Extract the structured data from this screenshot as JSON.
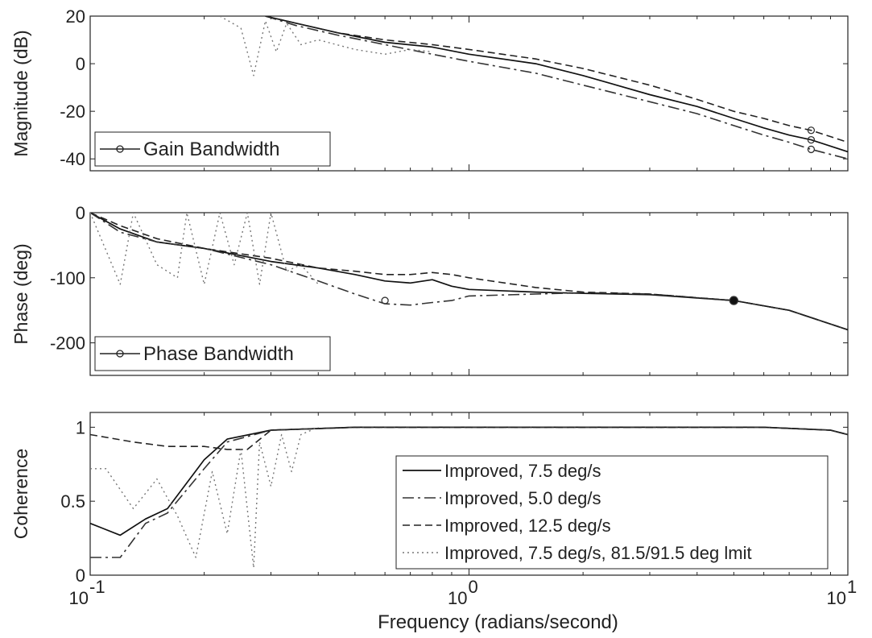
{
  "chart_data": [
    {
      "type": "line",
      "panel": "magnitude",
      "ylabel": "Magnitude (dB)",
      "xscale": "log",
      "xlim": [
        0.1,
        10
      ],
      "ylim": [
        -45,
        20
      ],
      "yticks": [
        -40,
        -20,
        0,
        20
      ],
      "grid": false,
      "legend": {
        "placement": "bottom-left",
        "entries": [
          {
            "label": "Gain Bandwidth",
            "marker": "circle"
          }
        ]
      },
      "series": [
        {
          "name": "Improved, 7.5 deg/s",
          "style": "solid",
          "x": [
            0.29,
            0.35,
            0.45,
            0.6,
            0.8,
            1.0,
            1.5,
            2,
            3,
            4,
            5,
            6,
            7,
            8,
            10
          ],
          "y": [
            20,
            17,
            13,
            9,
            7,
            4,
            0,
            -5,
            -13,
            -18,
            -23,
            -27,
            -30,
            -32,
            -37
          ]
        },
        {
          "name": "Improved, 5.0 deg/s",
          "style": "dashdot",
          "x": [
            0.29,
            0.35,
            0.45,
            0.6,
            0.8,
            1.0,
            1.5,
            2,
            3,
            4,
            5,
            6,
            7,
            8,
            10
          ],
          "y": [
            20,
            16,
            12,
            8,
            4,
            1,
            -4,
            -9,
            -16,
            -21,
            -26,
            -30,
            -33,
            -36,
            -40
          ]
        },
        {
          "name": "Improved, 12.5 deg/s",
          "style": "dashed",
          "x": [
            0.29,
            0.35,
            0.45,
            0.6,
            0.8,
            1.0,
            1.5,
            2,
            3,
            4,
            5,
            6,
            7,
            8,
            10
          ],
          "y": [
            20,
            17,
            13,
            10,
            8,
            6,
            2,
            -2,
            -9,
            -15,
            -20,
            -23,
            -26,
            -28,
            -33
          ]
        },
        {
          "name": "Improved, 7.5 deg/s, 81.5/91.5 deg limit",
          "style": "dotted",
          "x": [
            0.22,
            0.25,
            0.27,
            0.29,
            0.31,
            0.33,
            0.36,
            0.4,
            0.5,
            0.6,
            0.7,
            0.8
          ],
          "y": [
            20,
            15,
            -5,
            18,
            5,
            17,
            8,
            10,
            6,
            4,
            6,
            5
          ]
        }
      ],
      "markers": [
        {
          "x": 8,
          "y": -32
        },
        {
          "x": 8,
          "y": -36
        },
        {
          "x": 8,
          "y": -28
        }
      ]
    },
    {
      "type": "line",
      "panel": "phase",
      "ylabel": "Phase (deg)",
      "xscale": "log",
      "xlim": [
        0.1,
        10
      ],
      "ylim": [
        -250,
        0
      ],
      "yticks": [
        -200,
        -100,
        0
      ],
      "grid": false,
      "legend": {
        "placement": "bottom-left",
        "entries": [
          {
            "label": "Phase Bandwidth",
            "marker": "circle"
          }
        ]
      },
      "series": [
        {
          "name": "Improved, 7.5 deg/s",
          "style": "solid",
          "x": [
            0.1,
            0.12,
            0.15,
            0.2,
            0.3,
            0.4,
            0.5,
            0.6,
            0.7,
            0.8,
            0.9,
            1.0,
            1.5,
            2,
            3,
            5,
            7,
            10
          ],
          "y": [
            0,
            -25,
            -45,
            -55,
            -75,
            -85,
            -95,
            -105,
            -108,
            -103,
            -113,
            -118,
            -122,
            -124,
            -126,
            -135,
            -150,
            -180
          ]
        },
        {
          "name": "Improved, 5.0 deg/s",
          "style": "dashdot",
          "x": [
            0.1,
            0.12,
            0.15,
            0.2,
            0.3,
            0.4,
            0.5,
            0.6,
            0.7,
            0.8,
            0.9,
            1.0,
            1.5,
            2,
            3,
            5,
            7,
            10
          ],
          "y": [
            0,
            -30,
            -45,
            -55,
            -80,
            -105,
            -125,
            -140,
            -142,
            -138,
            -135,
            -128,
            -125,
            -123,
            -125,
            -135,
            -150,
            -180
          ]
        },
        {
          "name": "Improved, 12.5 deg/s",
          "style": "dashed",
          "x": [
            0.1,
            0.12,
            0.15,
            0.2,
            0.3,
            0.4,
            0.5,
            0.6,
            0.7,
            0.8,
            0.9,
            1.0,
            1.5,
            2,
            3,
            5,
            7,
            10
          ],
          "y": [
            0,
            -20,
            -40,
            -55,
            -70,
            -85,
            -90,
            -95,
            -95,
            -92,
            -95,
            -100,
            -115,
            -122,
            -125,
            -135,
            -150,
            -180
          ]
        },
        {
          "name": "Improved, 7.5 deg/s, 81.5/91.5 deg limit",
          "style": "dotted",
          "x": [
            0.1,
            0.12,
            0.13,
            0.15,
            0.17,
            0.18,
            0.2,
            0.22,
            0.24,
            0.26,
            0.28,
            0.3,
            0.33,
            0.36,
            0.4
          ],
          "y": [
            0,
            -110,
            0,
            -80,
            -100,
            0,
            -110,
            0,
            -80,
            0,
            -110,
            0,
            -90,
            -80,
            -110
          ]
        }
      ],
      "markers": [
        {
          "x": 0.6,
          "y": -135,
          "filled": false
        },
        {
          "x": 5,
          "y": -135,
          "filled": true
        }
      ]
    },
    {
      "type": "line",
      "panel": "coherence",
      "ylabel": "Coherence",
      "xlabel": "Frequency (radians/second)",
      "xscale": "log",
      "xlim": [
        0.1,
        10
      ],
      "ylim": [
        0,
        1.1
      ],
      "yticks": [
        0,
        0.5,
        1
      ],
      "xticks": [
        0.1,
        1,
        10
      ],
      "grid": false,
      "legend": {
        "placement": "bottom-right",
        "entries": [
          {
            "label": "Improved, 7.5 deg/s",
            "style": "solid"
          },
          {
            "label": "Improved, 5.0 deg/s",
            "style": "dashdot"
          },
          {
            "label": "Improved, 12.5 deg/s",
            "style": "dashed"
          },
          {
            "label": "Improved, 7.5 deg/s, 81.5/91.5 deg lmit",
            "style": "dotted"
          }
        ]
      },
      "series": [
        {
          "name": "Improved, 7.5 deg/s",
          "style": "solid",
          "x": [
            0.1,
            0.12,
            0.14,
            0.16,
            0.2,
            0.23,
            0.3,
            0.5,
            1,
            3,
            6,
            9,
            10
          ],
          "y": [
            0.35,
            0.27,
            0.38,
            0.45,
            0.78,
            0.92,
            0.98,
            1.0,
            1.0,
            1.0,
            1.0,
            0.98,
            0.95
          ]
        },
        {
          "name": "Improved, 5.0 deg/s",
          "style": "dashdot",
          "x": [
            0.1,
            0.12,
            0.14,
            0.16,
            0.2,
            0.23,
            0.3,
            0.5,
            1,
            3,
            6,
            9,
            10
          ],
          "y": [
            0.12,
            0.12,
            0.35,
            0.42,
            0.72,
            0.9,
            0.98,
            1.0,
            1.0,
            1.0,
            1.0,
            0.98,
            0.95
          ]
        },
        {
          "name": "Improved, 12.5 deg/s",
          "style": "dashed",
          "x": [
            0.1,
            0.13,
            0.16,
            0.2,
            0.23,
            0.26,
            0.3,
            0.5,
            1,
            3,
            6,
            9,
            10
          ],
          "y": [
            0.95,
            0.9,
            0.87,
            0.87,
            0.85,
            0.85,
            0.98,
            1.0,
            1.0,
            1.0,
            1.0,
            0.98,
            0.95
          ]
        },
        {
          "name": "Improved, 7.5 deg/s, 81.5/91.5 deg limit",
          "style": "dotted",
          "x": [
            0.1,
            0.11,
            0.13,
            0.15,
            0.17,
            0.19,
            0.21,
            0.23,
            0.25,
            0.27,
            0.28,
            0.3,
            0.32,
            0.34,
            0.36,
            0.4
          ],
          "y": [
            0.72,
            0.72,
            0.45,
            0.65,
            0.4,
            0.12,
            0.7,
            0.28,
            0.85,
            0.05,
            0.9,
            0.6,
            0.95,
            0.7,
            0.95,
            1.0
          ]
        }
      ]
    }
  ]
}
